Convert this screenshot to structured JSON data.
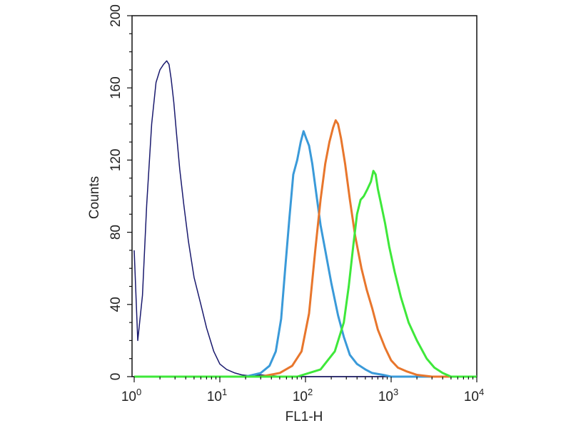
{
  "chart_data": {
    "type": "line",
    "subtype": "flow-cytometry-histogram",
    "title": "",
    "xlabel": "FL1-H",
    "ylabel": "Counts",
    "xscale": "log",
    "xlim": [
      1,
      10000
    ],
    "ylim": [
      0,
      200
    ],
    "grid": false,
    "legend": "none",
    "xticks": [
      {
        "value": 1,
        "base": "10",
        "exp": "0"
      },
      {
        "value": 10,
        "base": "10",
        "exp": "1"
      },
      {
        "value": 100,
        "base": "10",
        "exp": "2"
      },
      {
        "value": 1000,
        "base": "10",
        "exp": "3"
      },
      {
        "value": 10000,
        "base": "10",
        "exp": "4"
      }
    ],
    "yticks": [
      "0",
      "40",
      "80",
      "120",
      "160",
      "200"
    ],
    "series": [
      {
        "color": "#1a1a6e",
        "width": 1.5,
        "x": [
          1,
          1.1,
          1.25,
          1.4,
          1.6,
          1.8,
          2.0,
          2.2,
          2.4,
          2.55,
          2.7,
          2.9,
          3.1,
          3.4,
          3.8,
          4.3,
          5.0,
          6.0,
          7.0,
          8.5,
          10,
          12,
          15,
          18,
          22,
          26,
          30,
          40,
          60,
          100,
          1000,
          10000
        ],
        "y": [
          70,
          20,
          45,
          95,
          140,
          163,
          170,
          173,
          175,
          173,
          165,
          152,
          136,
          115,
          95,
          75,
          55,
          40,
          27,
          14,
          7,
          4,
          2,
          1,
          0.5,
          0.5,
          1,
          0.5,
          0,
          0,
          0,
          0
        ]
      },
      {
        "color": "#3a9ad9",
        "width": 3,
        "x": [
          1,
          20,
          30,
          38,
          45,
          52,
          58,
          65,
          72,
          80,
          88,
          95,
          102,
          110,
          120,
          135,
          150,
          170,
          200,
          240,
          280,
          330,
          400,
          500,
          600,
          800,
          1000,
          10000
        ],
        "y": [
          0,
          0,
          2,
          6,
          14,
          32,
          60,
          88,
          112,
          120,
          130,
          136,
          132,
          128,
          118,
          100,
          84,
          70,
          52,
          34,
          22,
          12,
          7,
          4,
          2,
          1,
          0,
          0
        ]
      },
      {
        "color": "#e8762c",
        "width": 3,
        "x": [
          1,
          30,
          50,
          70,
          90,
          110,
          130,
          150,
          170,
          190,
          210,
          225,
          240,
          260,
          290,
          330,
          380,
          450,
          520,
          600,
          700,
          850,
          1000,
          1200,
          1500,
          2000,
          3000,
          10000
        ],
        "y": [
          0,
          0,
          2,
          6,
          14,
          35,
          70,
          98,
          118,
          130,
          138,
          142,
          140,
          132,
          118,
          98,
          78,
          60,
          48,
          38,
          26,
          16,
          9,
          5,
          3,
          1,
          0,
          0
        ]
      },
      {
        "color": "#3ee83a",
        "width": 3,
        "x": [
          1,
          80,
          150,
          220,
          280,
          320,
          360,
          400,
          440,
          480,
          530,
          580,
          620,
          660,
          700,
          760,
          850,
          950,
          1100,
          1300,
          1600,
          2000,
          2600,
          3200,
          4000,
          5000,
          10000
        ],
        "y": [
          0,
          0,
          4,
          14,
          30,
          50,
          72,
          90,
          98,
          100,
          104,
          108,
          114,
          112,
          104,
          96,
          85,
          72,
          58,
          44,
          30,
          20,
          10,
          5,
          2,
          0,
          0
        ]
      }
    ]
  }
}
